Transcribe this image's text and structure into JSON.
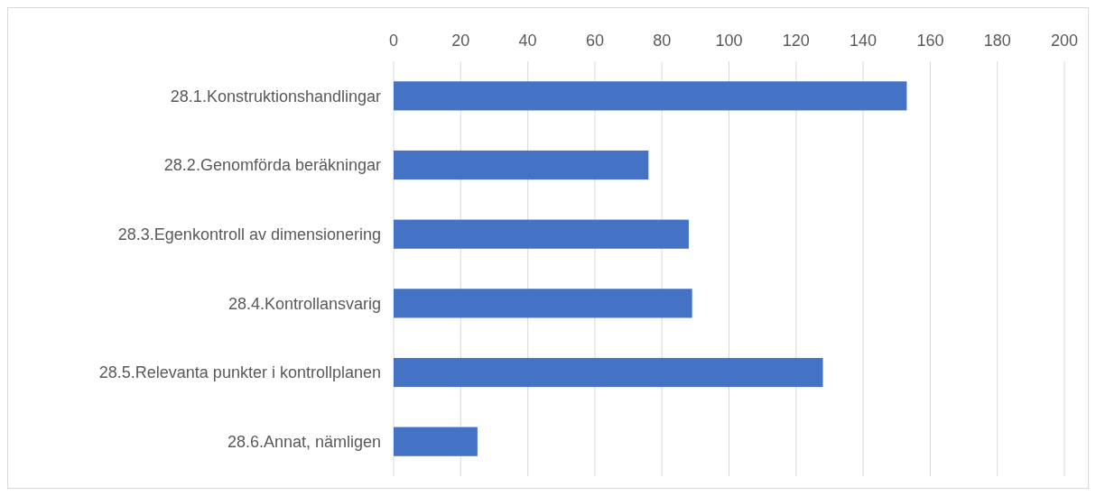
{
  "chart_data": {
    "type": "bar",
    "orientation": "horizontal",
    "categories": [
      "28.1.Konstruktionshandlingar",
      "28.2.Genomförda beräkningar",
      "28.3.Egenkontroll av dimensionering",
      "28.4.Kontrollansvarig",
      "28.5.Relevanta punkter i kontrollplanen",
      "28.6.Annat, nämligen"
    ],
    "values": [
      153,
      76,
      88,
      89,
      128,
      25
    ],
    "color": "#4472c4",
    "xlim": [
      0,
      200
    ],
    "xticks": [
      0,
      20,
      40,
      60,
      80,
      100,
      120,
      140,
      160,
      180,
      200
    ],
    "grid": "x"
  }
}
